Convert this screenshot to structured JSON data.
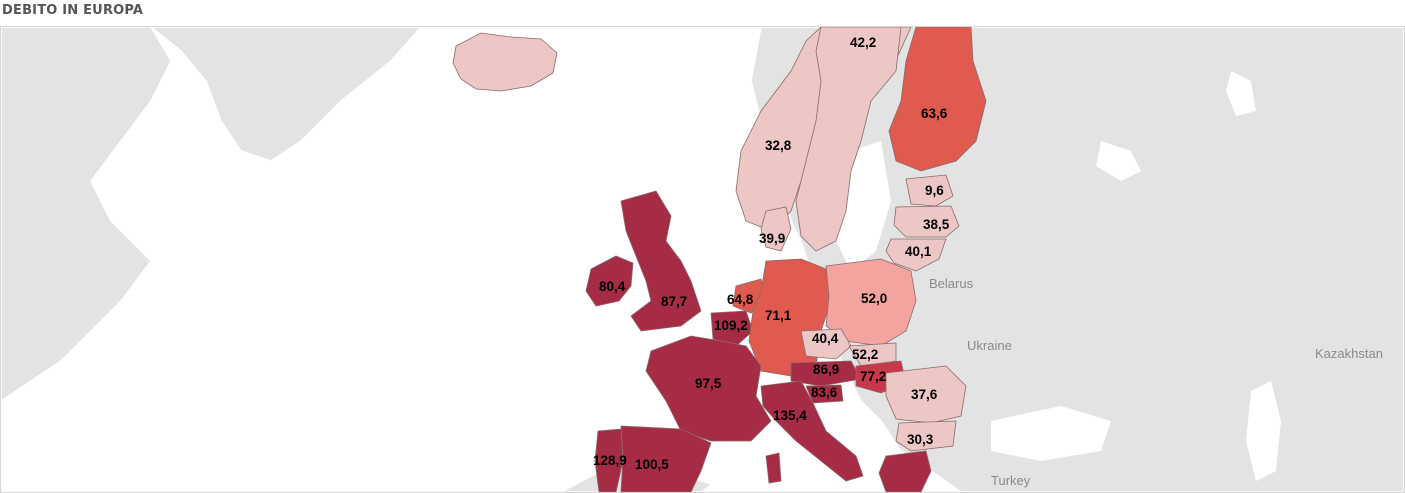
{
  "title": "DEBITO IN EUROPA",
  "colors": {
    "background": "#ffffff",
    "land": "#e3e3e3",
    "scale_low": "#ecc7c5",
    "scale_mid": "#f3a49e",
    "scale_midhigh": "#e05a50",
    "scale_high": "#c8384a",
    "scale_max": "#a62b45"
  },
  "place_labels": {
    "belarus": "Belarus",
    "ukraine": "Ukraine",
    "kazakhstan": "Kazakhstan",
    "turkey": "Turkey"
  },
  "countries": [
    {
      "id": "norway",
      "value": "42,2"
    },
    {
      "id": "finland",
      "value": "63,6"
    },
    {
      "id": "sweden",
      "value": "32,8"
    },
    {
      "id": "estonia",
      "value": "9,6"
    },
    {
      "id": "latvia",
      "value": "38,5"
    },
    {
      "id": "lithuania",
      "value": "40,1"
    },
    {
      "id": "denmark",
      "value": "39,9"
    },
    {
      "id": "ireland",
      "value": "80,4"
    },
    {
      "id": "united-kingdom",
      "value": "87,7"
    },
    {
      "id": "netherlands",
      "value": "64,8"
    },
    {
      "id": "germany",
      "value": "71,1"
    },
    {
      "id": "poland",
      "value": "52,0"
    },
    {
      "id": "belgium",
      "value": "109,2"
    },
    {
      "id": "czech-republic",
      "value": "40,4"
    },
    {
      "id": "slovakia",
      "value": "52,2"
    },
    {
      "id": "austria",
      "value": "86,9"
    },
    {
      "id": "hungary",
      "value": "77,2"
    },
    {
      "id": "slovenia",
      "value": "83,6"
    },
    {
      "id": "france",
      "value": "97,5"
    },
    {
      "id": "romania",
      "value": "37,6"
    },
    {
      "id": "italy",
      "value": "135,4"
    },
    {
      "id": "bulgaria",
      "value": "30,3"
    },
    {
      "id": "portugal",
      "value": "128,9"
    },
    {
      "id": "spain",
      "value": "100,5"
    }
  ]
}
